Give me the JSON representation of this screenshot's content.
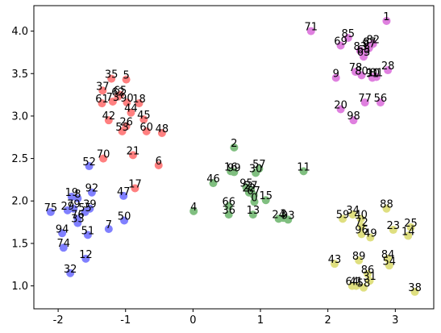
{
  "chart_data": {
    "type": "scatter",
    "xlim": [
      -2.36,
      3.57
    ],
    "ylim": [
      0.73,
      4.3
    ],
    "xticks": [
      -2,
      -1,
      0,
      1,
      2,
      3
    ],
    "yticks": [
      {
        "value": 1,
        "label": "1.0"
      },
      {
        "value": 1.5,
        "label": "1.5"
      },
      {
        "value": 2,
        "label": "2.0"
      },
      {
        "value": 2.5,
        "label": "2.5"
      },
      {
        "value": 3,
        "label": "3.0"
      },
      {
        "value": 3.5,
        "label": "3.5"
      },
      {
        "value": 4,
        "label": "4.0"
      }
    ],
    "grid": false,
    "series": [
      {
        "color": "#df80df",
        "labels": [
          "1",
          "71",
          "85",
          "69",
          "82",
          "97",
          "83",
          "68",
          "63",
          "28",
          "78",
          "9",
          "80",
          "10",
          "81",
          "91",
          "77",
          "56",
          "20",
          "98",
          "87"
        ],
        "x": [
          2.87,
          1.75,
          2.3,
          2.19,
          2.67,
          2.61,
          2.48,
          2.53,
          2.53,
          2.89,
          2.41,
          2.12,
          2.5,
          2.67,
          2.72,
          2.66,
          2.55,
          2.78,
          2.19,
          2.38,
          2.62
        ],
        "y": [
          4.12,
          4.0,
          3.92,
          3.83,
          3.85,
          3.8,
          3.77,
          3.73,
          3.7,
          3.54,
          3.52,
          3.45,
          3.48,
          3.46,
          3.46,
          3.45,
          3.16,
          3.16,
          3.08,
          2.95,
          3.82
        ]
      },
      {
        "color": "#ff8080",
        "labels": [
          "35",
          "5",
          "37",
          "65",
          "73",
          "61",
          "90",
          "18",
          "44",
          "45",
          "42",
          "26",
          "53",
          "60",
          "48",
          "21",
          "70",
          "6",
          "17",
          "62"
        ],
        "x": [
          -1.21,
          -0.99,
          -1.34,
          -1.08,
          -1.19,
          -1.35,
          -0.98,
          -0.8,
          -0.92,
          -0.73,
          -1.25,
          -0.99,
          -1.05,
          -0.69,
          -0.46,
          -0.89,
          -1.33,
          -0.51,
          -0.86,
          -1.11
        ],
        "y": [
          3.44,
          3.43,
          3.3,
          3.25,
          3.17,
          3.15,
          3.16,
          3.15,
          3.04,
          2.96,
          2.95,
          2.88,
          2.82,
          2.82,
          2.8,
          2.54,
          2.5,
          2.42,
          2.15,
          3.23
        ]
      },
      {
        "color": "#80bf80",
        "labels": [
          "2",
          "57",
          "30",
          "16",
          "99",
          "11",
          "46",
          "95",
          "27",
          "22",
          "0",
          "67",
          "15",
          "4",
          "66",
          "36",
          "13",
          "24",
          "93",
          "3"
        ],
        "x": [
          0.61,
          0.98,
          0.93,
          0.56,
          0.61,
          1.64,
          0.3,
          0.79,
          0.86,
          0.83,
          0.91,
          0.9,
          1.08,
          0.01,
          0.53,
          0.53,
          0.89,
          1.27,
          1.41,
          1.34
        ],
        "y": [
          2.63,
          2.38,
          2.33,
          2.35,
          2.34,
          2.35,
          2.21,
          2.16,
          2.13,
          2.1,
          1.99,
          2.07,
          2.01,
          1.88,
          1.94,
          1.84,
          1.84,
          1.79,
          1.78,
          1.8
        ]
      },
      {
        "color": "#dfdf80",
        "labels": [
          "88",
          "34",
          "59",
          "40",
          "72",
          "25",
          "23",
          "14",
          "96",
          "49",
          "84",
          "43",
          "89",
          "54",
          "86",
          "31",
          "64",
          "41",
          "58",
          "38"
        ],
        "x": [
          2.87,
          2.37,
          2.22,
          2.49,
          2.5,
          3.23,
          2.97,
          3.19,
          2.5,
          2.63,
          2.89,
          2.1,
          2.46,
          2.91,
          2.59,
          2.62,
          2.36,
          2.42,
          2.53,
          3.29
        ],
        "y": [
          1.91,
          1.84,
          1.79,
          1.79,
          1.7,
          1.69,
          1.66,
          1.59,
          1.61,
          1.57,
          1.32,
          1.26,
          1.3,
          1.24,
          1.14,
          1.06,
          1.0,
          1.0,
          0.98,
          0.93
        ]
      },
      {
        "color": "#8080ff",
        "labels": [
          "52",
          "92",
          "47",
          "19",
          "8",
          "75",
          "29",
          "79",
          "39",
          "55",
          "33",
          "76",
          "51",
          "7",
          "50",
          "94",
          "74",
          "12",
          "32"
        ],
        "x": [
          -1.54,
          -1.5,
          -1.03,
          -1.8,
          -1.71,
          -2.11,
          -1.86,
          -1.77,
          -1.53,
          -1.6,
          -1.71,
          -1.71,
          -1.56,
          -1.25,
          -1.02,
          -1.94,
          -1.92,
          -1.59,
          -1.82
        ],
        "y": [
          2.41,
          2.1,
          2.06,
          2.05,
          2.03,
          1.87,
          1.89,
          1.91,
          1.91,
          1.87,
          1.74,
          1.79,
          1.6,
          1.67,
          1.77,
          1.62,
          1.45,
          1.32,
          1.15
        ]
      }
    ]
  }
}
